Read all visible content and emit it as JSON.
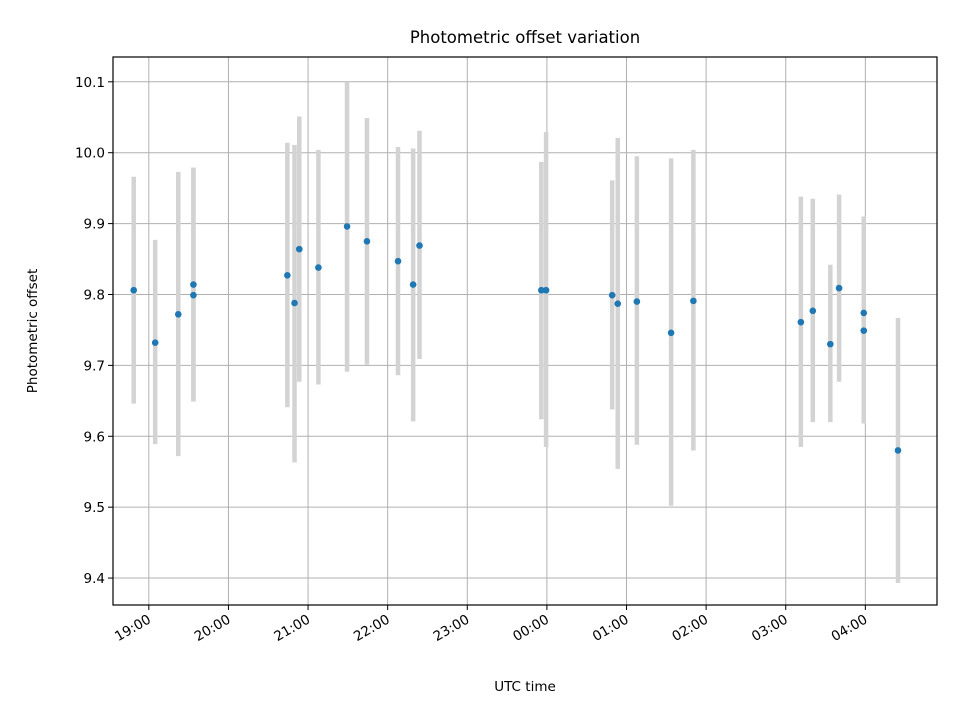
{
  "chart_data": {
    "type": "scatter",
    "title": "Photometric offset variation",
    "xlabel": "UTC time",
    "ylabel": "Photometric offset",
    "grid": true,
    "colors": {
      "point": "#1f77b4",
      "errorbar": "#d3d3d3"
    },
    "xlim": [
      18.55,
      28.9
    ],
    "ylim": [
      9.362,
      10.135
    ],
    "x_ticks": [
      {
        "value": 19,
        "label": "19:00"
      },
      {
        "value": 20,
        "label": "20:00"
      },
      {
        "value": 21,
        "label": "21:00"
      },
      {
        "value": 22,
        "label": "22:00"
      },
      {
        "value": 23,
        "label": "23:00"
      },
      {
        "value": 24,
        "label": "00:00"
      },
      {
        "value": 25,
        "label": "01:00"
      },
      {
        "value": 26,
        "label": "02:00"
      },
      {
        "value": 27,
        "label": "03:00"
      },
      {
        "value": 28,
        "label": "04:00"
      }
    ],
    "y_ticks": [
      {
        "value": 9.4,
        "label": "9.4"
      },
      {
        "value": 9.5,
        "label": "9.5"
      },
      {
        "value": 9.6,
        "label": "9.6"
      },
      {
        "value": 9.7,
        "label": "9.7"
      },
      {
        "value": 9.8,
        "label": "9.8"
      },
      {
        "value": 9.9,
        "label": "9.9"
      },
      {
        "value": 10.0,
        "label": "10.0"
      },
      {
        "value": 10.1,
        "label": "10.1"
      }
    ],
    "points": [
      {
        "x": 18.81,
        "y": 9.806,
        "ylo": 9.646,
        "yhi": 9.966
      },
      {
        "x": 19.08,
        "y": 9.732,
        "ylo": 9.589,
        "yhi": 9.877
      },
      {
        "x": 19.37,
        "y": 9.772,
        "ylo": 9.572,
        "yhi": 9.973
      },
      {
        "x": 19.56,
        "y": 9.814,
        "ylo": 9.649,
        "yhi": 9.979
      },
      {
        "x": 19.56,
        "y": 9.799,
        "ylo": 9.649,
        "yhi": 9.979
      },
      {
        "x": 20.74,
        "y": 9.827,
        "ylo": 9.641,
        "yhi": 10.014
      },
      {
        "x": 20.83,
        "y": 9.788,
        "ylo": 9.563,
        "yhi": 10.011
      },
      {
        "x": 20.89,
        "y": 9.864,
        "ylo": 9.677,
        "yhi": 10.051
      },
      {
        "x": 21.13,
        "y": 9.838,
        "ylo": 9.673,
        "yhi": 10.004
      },
      {
        "x": 21.49,
        "y": 9.896,
        "ylo": 9.691,
        "yhi": 10.099
      },
      {
        "x": 21.74,
        "y": 9.875,
        "ylo": 9.701,
        "yhi": 10.049
      },
      {
        "x": 22.13,
        "y": 9.847,
        "ylo": 9.686,
        "yhi": 10.008
      },
      {
        "x": 22.32,
        "y": 9.814,
        "ylo": 9.621,
        "yhi": 10.006
      },
      {
        "x": 22.4,
        "y": 9.869,
        "ylo": 9.709,
        "yhi": 10.031
      },
      {
        "x": 23.93,
        "y": 9.806,
        "ylo": 9.624,
        "yhi": 9.987
      },
      {
        "x": 23.99,
        "y": 9.806,
        "ylo": 9.585,
        "yhi": 10.029
      },
      {
        "x": 24.82,
        "y": 9.799,
        "ylo": 9.638,
        "yhi": 9.961
      },
      {
        "x": 24.89,
        "y": 9.787,
        "ylo": 9.554,
        "yhi": 10.021
      },
      {
        "x": 25.13,
        "y": 9.79,
        "ylo": 9.588,
        "yhi": 9.995
      },
      {
        "x": 25.56,
        "y": 9.746,
        "ylo": 9.502,
        "yhi": 9.992
      },
      {
        "x": 25.84,
        "y": 9.791,
        "ylo": 9.58,
        "yhi": 10.004
      },
      {
        "x": 27.19,
        "y": 9.761,
        "ylo": 9.585,
        "yhi": 9.938
      },
      {
        "x": 27.34,
        "y": 9.777,
        "ylo": 9.62,
        "yhi": 9.935
      },
      {
        "x": 27.56,
        "y": 9.73,
        "ylo": 9.62,
        "yhi": 9.842
      },
      {
        "x": 27.67,
        "y": 9.809,
        "ylo": 9.677,
        "yhi": 9.941
      },
      {
        "x": 27.98,
        "y": 9.774,
        "ylo": 9.64,
        "yhi": 9.91
      },
      {
        "x": 27.98,
        "y": 9.749,
        "ylo": 9.618,
        "yhi": 9.88
      },
      {
        "x": 28.41,
        "y": 9.58,
        "ylo": 9.393,
        "yhi": 9.767
      }
    ]
  }
}
